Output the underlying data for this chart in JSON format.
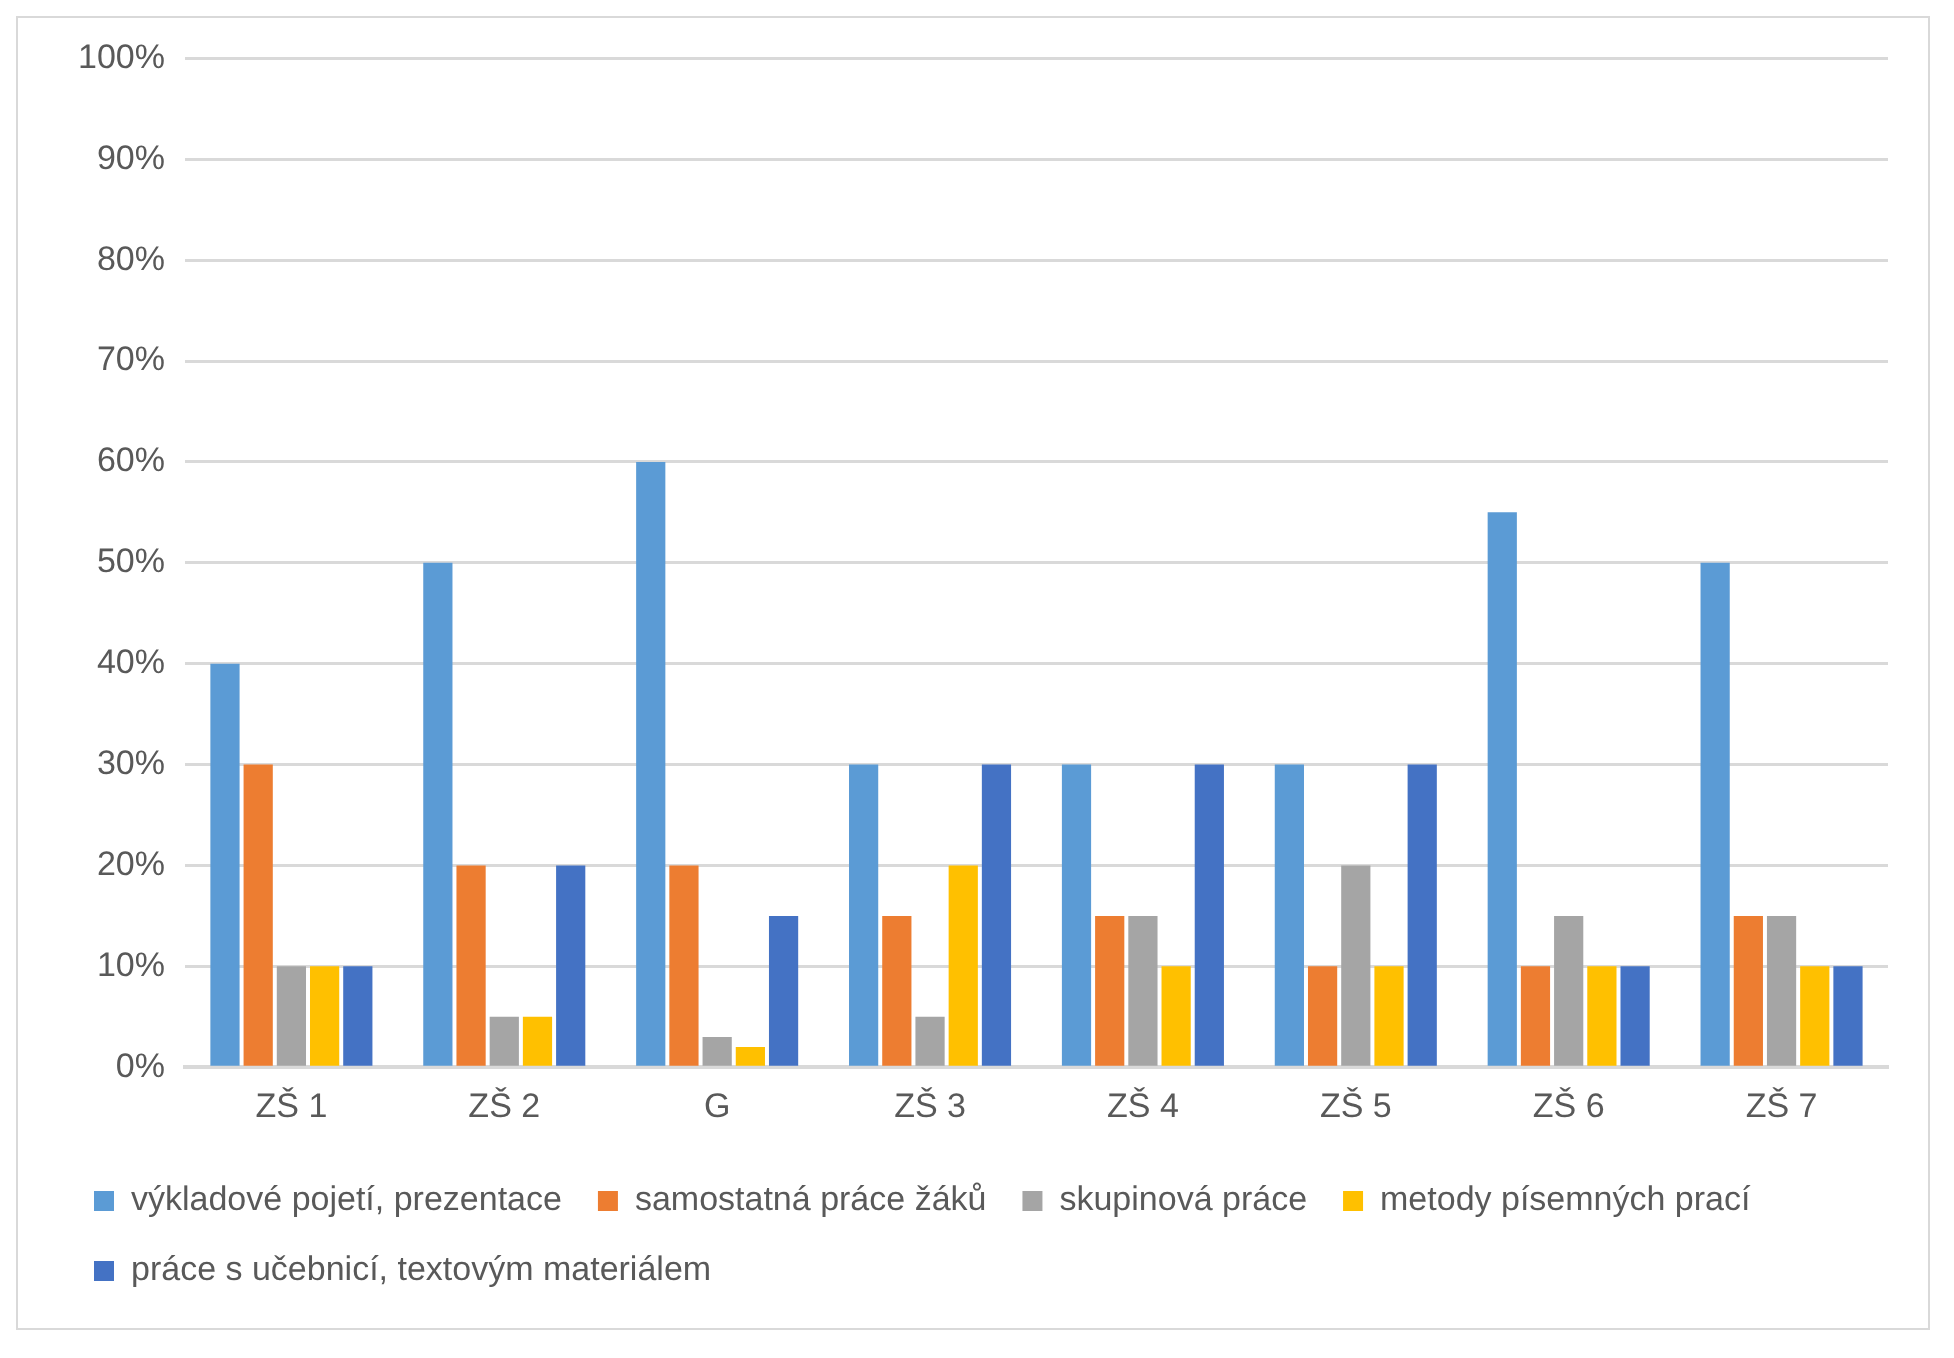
{
  "chart_data": {
    "type": "bar",
    "categories": [
      "ZŠ 1",
      "ZŠ 2",
      "G",
      "ZŠ 3",
      "ZŠ 4",
      "ZŠ 5",
      "ZŠ 6",
      "ZŠ 7"
    ],
    "series": [
      {
        "name": "výkladové pojetí, prezentace",
        "color": "#5b9bd5",
        "values": [
          40,
          50,
          60,
          30,
          30,
          30,
          55,
          50
        ]
      },
      {
        "name": "samostatná práce žáků",
        "color": "#ed7d31",
        "values": [
          30,
          20,
          20,
          15,
          15,
          10,
          10,
          15
        ]
      },
      {
        "name": "skupinová práce",
        "color": "#a5a5a5",
        "values": [
          10,
          5,
          3,
          5,
          15,
          20,
          15,
          15
        ]
      },
      {
        "name": "metody písemných prací",
        "color": "#ffc000",
        "values": [
          10,
          5,
          2,
          20,
          10,
          10,
          10,
          10
        ]
      },
      {
        "name": "práce s učebnicí, textovým materiálem",
        "color": "#4472c4",
        "values": [
          10,
          20,
          15,
          30,
          30,
          30,
          10,
          10
        ]
      }
    ],
    "ylim": [
      0,
      100
    ],
    "yticks": [
      {
        "value": 0,
        "label": "0%"
      },
      {
        "value": 10,
        "label": "10%"
      },
      {
        "value": 20,
        "label": "20%"
      },
      {
        "value": 30,
        "label": "30%"
      },
      {
        "value": 40,
        "label": "40%"
      },
      {
        "value": 50,
        "label": "50%"
      },
      {
        "value": 60,
        "label": "60%"
      },
      {
        "value": 70,
        "label": "70%"
      },
      {
        "value": 80,
        "label": "80%"
      },
      {
        "value": 90,
        "label": "90%"
      },
      {
        "value": 100,
        "label": "100%"
      }
    ],
    "grid": "y",
    "legend": "bottom"
  }
}
